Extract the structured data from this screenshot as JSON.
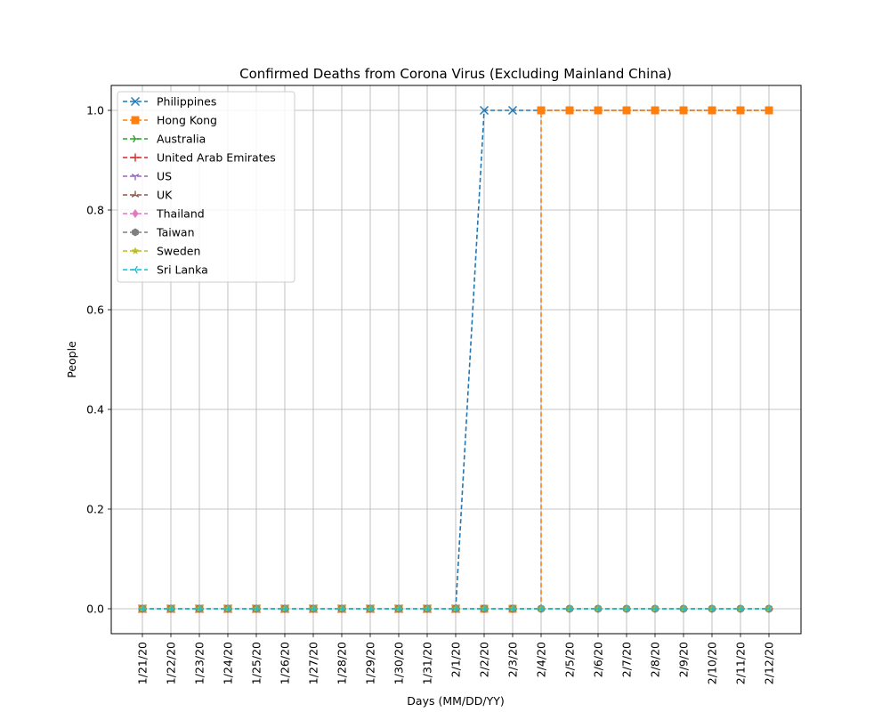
{
  "chart_data": {
    "type": "line",
    "title": "Confirmed Deaths from Corona Virus (Excluding Mainland China)",
    "xlabel": "Days (MM/DD/YY)",
    "ylabel": "People",
    "categories": [
      "1/21/20",
      "1/22/20",
      "1/23/20",
      "1/24/20",
      "1/25/20",
      "1/26/20",
      "1/27/20",
      "1/28/20",
      "1/29/20",
      "1/30/20",
      "1/31/20",
      "2/1/20",
      "2/2/20",
      "2/3/20",
      "2/4/20",
      "2/5/20",
      "2/6/20",
      "2/7/20",
      "2/8/20",
      "2/9/20",
      "2/10/20",
      "2/11/20",
      "2/12/20"
    ],
    "ylim": [
      -0.05,
      1.05
    ],
    "yticks": [
      "0.0",
      "0.2",
      "0.4",
      "0.6",
      "0.8",
      "1.0"
    ],
    "grid": true,
    "legend_position": "upper-left",
    "series": [
      {
        "name": "Philippines",
        "color": "#1f77b4",
        "marker": "x",
        "values": [
          0,
          0,
          0,
          0,
          0,
          0,
          0,
          0,
          0,
          0,
          0,
          0,
          1,
          1,
          1,
          1,
          1,
          1,
          1,
          1,
          1,
          1,
          1
        ],
        "missing_markers": [
          14,
          15,
          16,
          17,
          18,
          19,
          20,
          21,
          22
        ]
      },
      {
        "name": "Hong Kong",
        "color": "#ff7f0e",
        "marker": "square",
        "values": [
          0,
          0,
          0,
          0,
          0,
          0,
          0,
          0,
          0,
          0,
          0,
          0,
          0,
          0,
          1,
          1,
          1,
          1,
          1,
          1,
          1,
          1,
          1
        ],
        "vertical_step_at": 14
      },
      {
        "name": "Australia",
        "color": "#2ca02c",
        "marker": "tri-right",
        "values": [
          0,
          0,
          0,
          0,
          0,
          0,
          0,
          0,
          0,
          0,
          0,
          0,
          0,
          0,
          0,
          0,
          0,
          0,
          0,
          0,
          0,
          0,
          0
        ]
      },
      {
        "name": "United Arab Emirates",
        "color": "#d62728",
        "marker": "plus",
        "values": [
          0,
          0,
          0,
          0,
          0,
          0,
          0,
          0,
          0,
          0,
          0,
          0,
          0,
          0,
          0,
          0,
          0,
          0,
          0,
          0,
          0,
          0,
          0
        ]
      },
      {
        "name": "US",
        "color": "#9467bd",
        "marker": "tri-down",
        "values": [
          0,
          0,
          0,
          0,
          0,
          0,
          0,
          0,
          0,
          0,
          0,
          0,
          0,
          0,
          0,
          0,
          0,
          0,
          0,
          0,
          0,
          0,
          0
        ]
      },
      {
        "name": "UK",
        "color": "#8c564b",
        "marker": "tri-up",
        "values": [
          0,
          0,
          0,
          0,
          0,
          0,
          0,
          0,
          0,
          0,
          0,
          0,
          0,
          0,
          0,
          0,
          0,
          0,
          0,
          0,
          0,
          0,
          0
        ]
      },
      {
        "name": "Thailand",
        "color": "#e377c2",
        "marker": "diamond",
        "values": [
          0,
          0,
          0,
          0,
          0,
          0,
          0,
          0,
          0,
          0,
          0,
          0,
          0,
          0,
          0,
          0,
          0,
          0,
          0,
          0,
          0,
          0,
          0
        ]
      },
      {
        "name": "Taiwan",
        "color": "#7f7f7f",
        "marker": "hexagon",
        "values": [
          0,
          0,
          0,
          0,
          0,
          0,
          0,
          0,
          0,
          0,
          0,
          0,
          0,
          0,
          0,
          0,
          0,
          0,
          0,
          0,
          0,
          0,
          0
        ]
      },
      {
        "name": "Sweden",
        "color": "#bcbd22",
        "marker": "star",
        "values": [
          0,
          0,
          0,
          0,
          0,
          0,
          0,
          0,
          0,
          0,
          0,
          0,
          0,
          0,
          0,
          0,
          0,
          0,
          0,
          0,
          0,
          0,
          0
        ]
      },
      {
        "name": "Sri Lanka",
        "color": "#17becf",
        "marker": "tri-left",
        "values": [
          0,
          0,
          0,
          0,
          0,
          0,
          0,
          0,
          0,
          0,
          0,
          0,
          0,
          0,
          0,
          0,
          0,
          0,
          0,
          0,
          0,
          0,
          0
        ]
      }
    ]
  }
}
